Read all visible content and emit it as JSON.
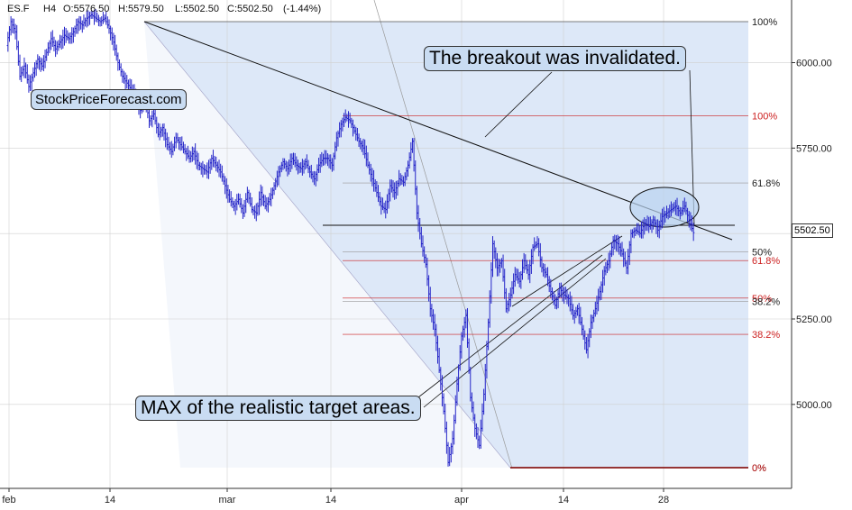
{
  "header": {
    "symbol": "ES.F",
    "timeframe": "H4",
    "open": "O:5576.50",
    "high": "H:5579.50",
    "low": "L:5502.50",
    "close": "C:5502.50",
    "change": "(-1.44%)"
  },
  "watermark": "StockPriceForecast.com",
  "annotations": {
    "breakout": "The breakout was invalidated.",
    "max_target": "MAX of the realistic target areas."
  },
  "last_price_tag": "5502.50",
  "colors": {
    "candles": "#2525c8",
    "fib_red": "#cc1f1f",
    "fib_black": "#222222",
    "channel_fill": "#dde8f8",
    "callout_fill": "#c9dcf2",
    "grid": "#d0d0d0"
  },
  "chart_data": {
    "type": "line",
    "title": "",
    "xlabel": "",
    "ylabel": "",
    "x_ticks": [
      "feb",
      "14",
      "mar",
      "14",
      "apr",
      "14",
      "28"
    ],
    "y_ticks": [
      5000,
      5250,
      5500,
      5750,
      6000
    ],
    "y_tick_labels": [
      "5000.00",
      "5250.00",
      "5500.00",
      "5750.00",
      "6000.00"
    ],
    "ylim": [
      4720,
      6160
    ],
    "grid": true,
    "series": [
      {
        "values": [
          6050,
          6120,
          6090,
          5960,
          5990,
          5930,
          5970,
          6010,
          5990,
          6030,
          6070,
          6040,
          6060,
          6080,
          6070,
          6090,
          6120,
          6110,
          6130,
          6140,
          6130,
          6120,
          6130,
          6100,
          6060,
          6000,
          5960,
          5940,
          5920,
          5900,
          5860,
          5900,
          5830,
          5850,
          5790,
          5810,
          5760,
          5740,
          5780,
          5760,
          5740,
          5720,
          5740,
          5700,
          5690,
          5680,
          5720,
          5700,
          5680,
          5640,
          5600,
          5580,
          5600,
          5560,
          5620,
          5570,
          5560,
          5620,
          5580,
          5600,
          5640,
          5680,
          5710,
          5690,
          5720,
          5700,
          5690,
          5710,
          5680,
          5660,
          5700,
          5720,
          5720,
          5700,
          5780,
          5820,
          5840,
          5830,
          5800,
          5770,
          5750,
          5700,
          5660,
          5620,
          5580,
          5570,
          5640,
          5620,
          5660,
          5650,
          5700,
          5770,
          5560,
          5470,
          5410,
          5280,
          5220,
          5100,
          4980,
          4830,
          4900,
          5060,
          5200,
          5260,
          5020,
          4930,
          4880,
          5030,
          5240,
          5470,
          5400,
          5420,
          5280,
          5320,
          5380,
          5360,
          5420,
          5380,
          5460,
          5470,
          5400,
          5380,
          5330,
          5290,
          5340,
          5320,
          5310,
          5260,
          5280,
          5220,
          5160,
          5240,
          5280,
          5330,
          5390,
          5420,
          5480,
          5470,
          5440,
          5400,
          5500,
          5510,
          5500,
          5530,
          5520,
          5540,
          5510,
          5550,
          5560,
          5570,
          5580,
          5560,
          5580,
          5540,
          5502.5
        ]
      }
    ],
    "fib_levels": [
      {
        "label": "100%",
        "color": "black",
        "price": 6120
      },
      {
        "label": "100%",
        "color": "red",
        "price": 5845
      },
      {
        "label": "61.8%",
        "color": "black",
        "price": 5648
      },
      {
        "label": "50%",
        "color": "black",
        "price": 5447
      },
      {
        "label": "61.8%",
        "color": "red",
        "price": 5421
      },
      {
        "label": "50%",
        "color": "red",
        "price": 5311
      },
      {
        "label": "38.2%",
        "color": "black",
        "price": 5302
      },
      {
        "label": "38.2%",
        "color": "red",
        "price": 5205
      },
      {
        "label": "0%",
        "color": "black",
        "price": 4815
      },
      {
        "label": "0%",
        "color": "red",
        "price": 4815
      }
    ],
    "horizontal_support": 5517
  }
}
